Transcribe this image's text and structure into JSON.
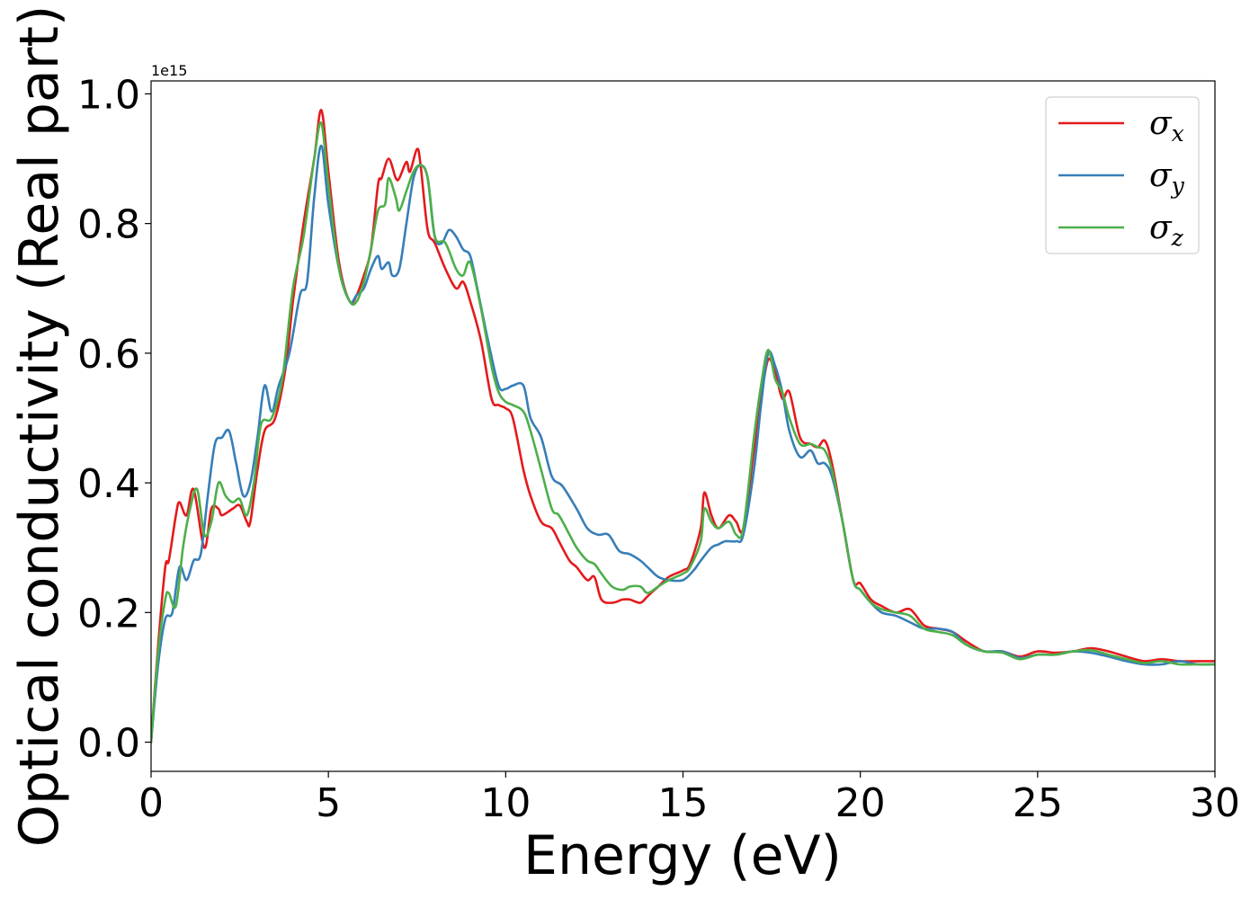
{
  "chart_data": {
    "type": "line",
    "xlabel": "Energy (eV)",
    "ylabel": "Optical conductivity (Real part)",
    "y_offset_text": "1e15",
    "xlim": [
      0,
      30
    ],
    "ylim": [
      -0.045,
      1.02
    ],
    "x_ticks": [
      0,
      5,
      10,
      15,
      20,
      25,
      30
    ],
    "y_ticks": [
      0.0,
      0.2,
      0.4,
      0.6,
      0.8,
      1.0
    ],
    "x_tick_labels": [
      "0",
      "5",
      "10",
      "15",
      "20",
      "25",
      "30"
    ],
    "y_tick_labels": [
      "0.0",
      "0.2",
      "0.4",
      "0.6",
      "0.8",
      "1.0"
    ],
    "grid": false,
    "legend_position": "top-right",
    "series": [
      {
        "name": "σx",
        "symbol": "σ",
        "subscript": "x",
        "color": "#e41a1c",
        "x": [
          0,
          0.2,
          0.4,
          0.5,
          0.7,
          0.8,
          1.0,
          1.2,
          1.5,
          1.7,
          1.9,
          2.0,
          2.3,
          2.5,
          2.7,
          2.8,
          3.0,
          3.2,
          3.5,
          3.8,
          4.0,
          4.3,
          4.6,
          4.8,
          5.0,
          5.3,
          5.6,
          5.8,
          6.0,
          6.2,
          6.4,
          6.5,
          6.7,
          6.9,
          7.0,
          7.2,
          7.3,
          7.5,
          7.6,
          7.8,
          8.0,
          8.3,
          8.6,
          8.8,
          9.0,
          9.3,
          9.6,
          9.8,
          10.0,
          10.2,
          10.5,
          10.7,
          11.0,
          11.3,
          11.5,
          11.8,
          12.0,
          12.3,
          12.5,
          12.7,
          13.0,
          13.3,
          13.5,
          13.8,
          14.0,
          14.3,
          14.6,
          15.0,
          15.2,
          15.5,
          15.6,
          15.8,
          16.0,
          16.3,
          16.5,
          16.7,
          17.0,
          17.2,
          17.4,
          17.6,
          17.8,
          18.0,
          18.3,
          18.6,
          18.8,
          19.0,
          19.2,
          19.5,
          19.8,
          20.0,
          20.3,
          20.6,
          21.0,
          21.4,
          21.8,
          22.2,
          22.6,
          23.0,
          23.5,
          24.0,
          24.5,
          25.0,
          25.5,
          26.0,
          26.5,
          27.0,
          27.5,
          28.0,
          28.5,
          29.0,
          29.5,
          30.0
        ],
        "values": [
          0.0,
          0.15,
          0.27,
          0.28,
          0.35,
          0.37,
          0.35,
          0.39,
          0.3,
          0.36,
          0.36,
          0.35,
          0.36,
          0.365,
          0.34,
          0.34,
          0.42,
          0.48,
          0.5,
          0.58,
          0.68,
          0.8,
          0.9,
          0.975,
          0.88,
          0.74,
          0.68,
          0.69,
          0.72,
          0.76,
          0.86,
          0.87,
          0.9,
          0.87,
          0.87,
          0.895,
          0.88,
          0.915,
          0.89,
          0.79,
          0.77,
          0.73,
          0.7,
          0.71,
          0.68,
          0.62,
          0.53,
          0.52,
          0.515,
          0.5,
          0.42,
          0.38,
          0.34,
          0.33,
          0.31,
          0.28,
          0.27,
          0.25,
          0.255,
          0.22,
          0.215,
          0.22,
          0.22,
          0.215,
          0.225,
          0.24,
          0.255,
          0.265,
          0.275,
          0.33,
          0.385,
          0.35,
          0.33,
          0.35,
          0.34,
          0.33,
          0.45,
          0.53,
          0.59,
          0.57,
          0.53,
          0.54,
          0.47,
          0.46,
          0.455,
          0.465,
          0.43,
          0.34,
          0.25,
          0.245,
          0.22,
          0.21,
          0.2,
          0.205,
          0.18,
          0.175,
          0.17,
          0.155,
          0.14,
          0.14,
          0.132,
          0.14,
          0.138,
          0.14,
          0.145,
          0.14,
          0.132,
          0.125,
          0.128,
          0.125,
          0.125,
          0.125
        ]
      },
      {
        "name": "σy",
        "symbol": "σ",
        "subscript": "y",
        "color": "#377eb8",
        "x": [
          0,
          0.2,
          0.4,
          0.6,
          0.8,
          1.0,
          1.2,
          1.4,
          1.6,
          1.8,
          2.0,
          2.2,
          2.4,
          2.6,
          2.8,
          3.0,
          3.2,
          3.4,
          3.6,
          3.9,
          4.2,
          4.4,
          4.6,
          4.8,
          5.0,
          5.3,
          5.6,
          5.8,
          6.0,
          6.2,
          6.4,
          6.5,
          6.7,
          6.8,
          7.0,
          7.2,
          7.4,
          7.6,
          7.8,
          8.0,
          8.2,
          8.4,
          8.6,
          8.8,
          9.0,
          9.2,
          9.5,
          9.8,
          10.0,
          10.2,
          10.5,
          10.7,
          11.0,
          11.3,
          11.6,
          12.0,
          12.3,
          12.6,
          12.9,
          13.2,
          13.5,
          13.8,
          14.0,
          14.3,
          14.6,
          15.0,
          15.3,
          15.5,
          15.8,
          16.0,
          16.2,
          16.5,
          16.7,
          17.0,
          17.2,
          17.4,
          17.6,
          17.8,
          18.0,
          18.3,
          18.6,
          18.8,
          19.0,
          19.2,
          19.5,
          19.8,
          20.0,
          20.3,
          20.6,
          21.0,
          21.4,
          21.8,
          22.2,
          22.6,
          23.0,
          23.5,
          24.0,
          24.5,
          25.0,
          25.5,
          26.0,
          26.5,
          27.0,
          27.5,
          28.0,
          28.5,
          29.0,
          29.5,
          30.0
        ],
        "values": [
          0.0,
          0.12,
          0.19,
          0.2,
          0.27,
          0.25,
          0.28,
          0.29,
          0.38,
          0.46,
          0.47,
          0.48,
          0.43,
          0.38,
          0.4,
          0.47,
          0.55,
          0.51,
          0.55,
          0.6,
          0.69,
          0.71,
          0.84,
          0.92,
          0.83,
          0.73,
          0.68,
          0.69,
          0.7,
          0.73,
          0.75,
          0.73,
          0.74,
          0.72,
          0.73,
          0.8,
          0.87,
          0.89,
          0.87,
          0.78,
          0.77,
          0.79,
          0.78,
          0.76,
          0.75,
          0.7,
          0.62,
          0.55,
          0.545,
          0.55,
          0.55,
          0.5,
          0.47,
          0.41,
          0.395,
          0.36,
          0.33,
          0.32,
          0.32,
          0.295,
          0.29,
          0.28,
          0.27,
          0.255,
          0.25,
          0.25,
          0.265,
          0.28,
          0.3,
          0.305,
          0.31,
          0.31,
          0.32,
          0.42,
          0.52,
          0.6,
          0.58,
          0.54,
          0.48,
          0.44,
          0.45,
          0.43,
          0.43,
          0.41,
          0.34,
          0.25,
          0.235,
          0.215,
          0.2,
          0.195,
          0.185,
          0.175,
          0.175,
          0.17,
          0.15,
          0.14,
          0.14,
          0.13,
          0.135,
          0.135,
          0.14,
          0.138,
          0.132,
          0.125,
          0.12,
          0.12,
          0.125,
          0.12,
          0.12
        ]
      },
      {
        "name": "σz",
        "symbol": "σ",
        "subscript": "z",
        "color": "#4daf4a",
        "x": [
          0,
          0.2,
          0.4,
          0.5,
          0.7,
          0.9,
          1.1,
          1.3,
          1.5,
          1.7,
          1.9,
          2.1,
          2.3,
          2.5,
          2.7,
          2.9,
          3.1,
          3.4,
          3.7,
          4.0,
          4.3,
          4.6,
          4.8,
          5.0,
          5.3,
          5.6,
          5.8,
          6.0,
          6.2,
          6.4,
          6.6,
          6.7,
          6.9,
          7.0,
          7.2,
          7.4,
          7.6,
          7.8,
          8.0,
          8.3,
          8.6,
          8.8,
          9.0,
          9.3,
          9.6,
          9.8,
          10.0,
          10.2,
          10.5,
          10.7,
          11.0,
          11.3,
          11.5,
          11.8,
          12.0,
          12.3,
          12.5,
          12.7,
          13.0,
          13.3,
          13.5,
          13.8,
          14.0,
          14.3,
          14.6,
          15.0,
          15.2,
          15.5,
          15.6,
          15.8,
          16.0,
          16.3,
          16.5,
          16.7,
          17.0,
          17.2,
          17.4,
          17.6,
          17.8,
          18.0,
          18.3,
          18.6,
          18.8,
          19.0,
          19.2,
          19.5,
          19.8,
          20.0,
          20.3,
          20.6,
          21.0,
          21.4,
          21.8,
          22.2,
          22.6,
          23.0,
          23.5,
          24.0,
          24.5,
          25.0,
          25.5,
          26.0,
          26.5,
          27.0,
          27.5,
          28.0,
          28.5,
          29.0,
          29.5,
          30.0
        ],
        "values": [
          0.0,
          0.14,
          0.22,
          0.23,
          0.21,
          0.3,
          0.36,
          0.39,
          0.32,
          0.34,
          0.4,
          0.38,
          0.37,
          0.375,
          0.35,
          0.4,
          0.49,
          0.5,
          0.56,
          0.7,
          0.78,
          0.9,
          0.955,
          0.86,
          0.73,
          0.68,
          0.68,
          0.71,
          0.76,
          0.82,
          0.83,
          0.87,
          0.84,
          0.82,
          0.85,
          0.88,
          0.89,
          0.87,
          0.78,
          0.77,
          0.73,
          0.72,
          0.74,
          0.67,
          0.58,
          0.54,
          0.525,
          0.52,
          0.51,
          0.48,
          0.42,
          0.36,
          0.35,
          0.32,
          0.3,
          0.28,
          0.275,
          0.26,
          0.24,
          0.235,
          0.24,
          0.24,
          0.23,
          0.24,
          0.25,
          0.26,
          0.27,
          0.31,
          0.36,
          0.34,
          0.33,
          0.34,
          0.32,
          0.33,
          0.47,
          0.55,
          0.605,
          0.56,
          0.54,
          0.5,
          0.46,
          0.46,
          0.455,
          0.45,
          0.42,
          0.34,
          0.25,
          0.235,
          0.215,
          0.205,
          0.2,
          0.195,
          0.175,
          0.17,
          0.165,
          0.15,
          0.14,
          0.138,
          0.128,
          0.135,
          0.135,
          0.14,
          0.142,
          0.135,
          0.128,
          0.122,
          0.125,
          0.12,
          0.12,
          0.12
        ]
      }
    ]
  }
}
